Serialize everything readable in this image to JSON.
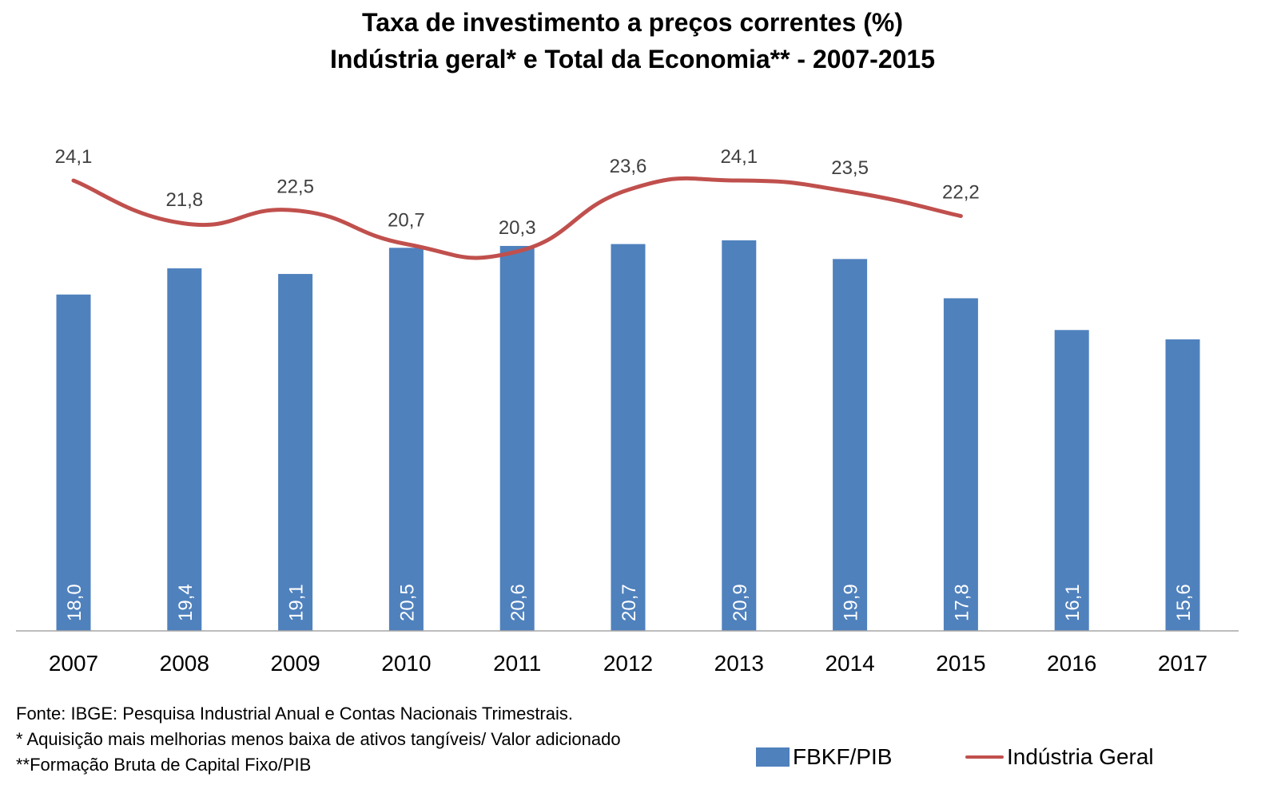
{
  "chart_data": {
    "type": "bar",
    "title": "Taxa de investimento a preços correntes (%)",
    "subtitle": "Indústria geral* e Total da Economia** - 2007-2015",
    "categories": [
      "2007",
      "2008",
      "2009",
      "2010",
      "2011",
      "2012",
      "2013",
      "2014",
      "2015",
      "2016",
      "2017"
    ],
    "series": [
      {
        "name": "FBKF/PIB",
        "type": "bar",
        "color": "#4f81bd",
        "values": [
          18.0,
          19.4,
          19.1,
          20.5,
          20.6,
          20.7,
          20.9,
          19.9,
          17.8,
          16.1,
          15.6
        ],
        "labels": [
          "18,0",
          "19,4",
          "19,1",
          "20,5",
          "20,6",
          "20,7",
          "20,9",
          "19,9",
          "17,8",
          "16,1",
          "15,6"
        ]
      },
      {
        "name": "Indústria Geral",
        "type": "line",
        "smooth": true,
        "color": "#c0504d",
        "values": [
          24.1,
          21.8,
          22.5,
          20.7,
          20.3,
          23.6,
          24.1,
          23.5,
          22.2,
          null,
          null
        ],
        "labels": [
          "24,1",
          "21,8",
          "22,5",
          "20,7",
          "20,3",
          "23,6",
          "24,1",
          "23,5",
          "22,2",
          "",
          ""
        ]
      }
    ],
    "grid": false,
    "legend_position": "bottom-right"
  },
  "notes": {
    "source": "Fonte: IBGE: Pesquisa Industrial Anual e Contas Nacionais Trimestrais.",
    "note1": "* Aquisição mais melhorias menos baixa de ativos tangíveis/ Valor adicionado",
    "note2": "**Formação Bruta de Capital Fixo/PIB"
  }
}
